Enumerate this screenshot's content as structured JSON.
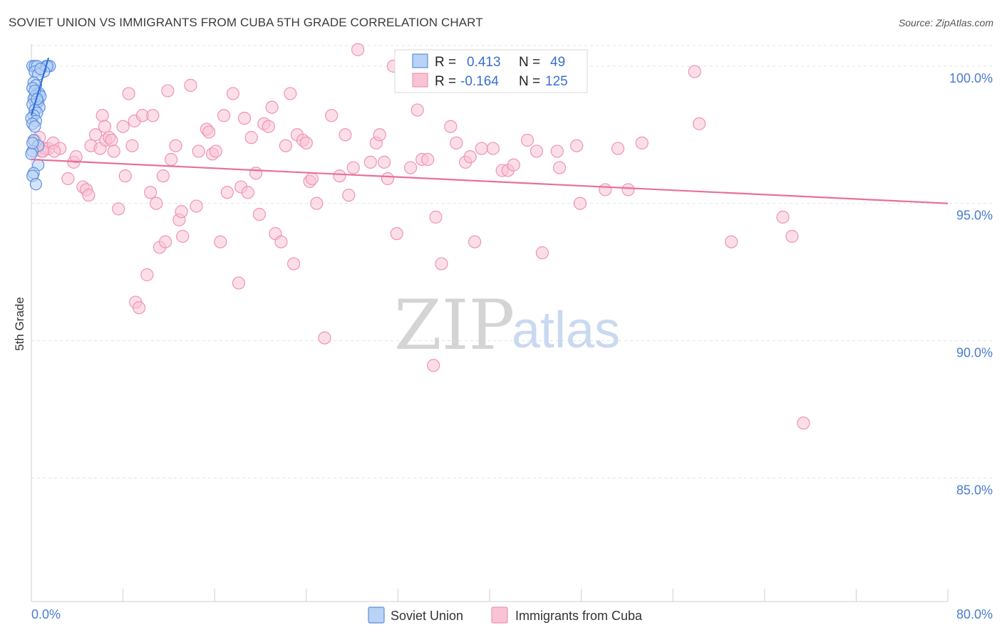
{
  "title": "SOVIET UNION VS IMMIGRANTS FROM CUBA 5TH GRADE CORRELATION CHART",
  "source": "Source: ZipAtlas.com",
  "watermark": {
    "zip": "ZIP",
    "atlas": "atlas"
  },
  "colors": {
    "soviet_fill": "#b9d2f5",
    "soviet_stroke": "#5b8fe0",
    "soviet_line": "#2f6fd6",
    "cuba_fill": "#f9c3d5",
    "cuba_stroke": "#ee94b4",
    "cuba_line": "#e8709a",
    "axis_text": "#4a7bd0",
    "grid": "#e3e3e3"
  },
  "stats": [
    {
      "r_label": "R =",
      "r": "0.413",
      "n_label": "N =",
      "n": "49"
    },
    {
      "r_label": "R =",
      "r": "-0.164",
      "n_label": "N =",
      "n": "125"
    }
  ],
  "chart_data": {
    "type": "scatter",
    "xlabel": "",
    "ylabel": "5th Grade",
    "xlim": [
      0,
      80
    ],
    "ylim": [
      80.5,
      100.8
    ],
    "x_tick_labels": [
      "0.0%",
      "80.0%"
    ],
    "y_ticks": [
      85,
      90,
      95,
      100
    ],
    "y_tick_labels": [
      "85.0%",
      "90.0%",
      "95.0%",
      "100.0%"
    ],
    "grid": true,
    "legend": "bottom-center",
    "series": [
      {
        "name": "Soviet Union",
        "r": 0.413,
        "n": 49,
        "trend": [
          [
            0.0,
            98.2
          ],
          [
            1.5,
            100.3
          ]
        ],
        "points": [
          [
            0.1,
            100
          ],
          [
            0.3,
            100
          ],
          [
            0.5,
            100
          ],
          [
            1.3,
            100
          ],
          [
            1.6,
            100
          ],
          [
            1.4,
            100
          ],
          [
            1.1,
            99.8
          ],
          [
            0.3,
            99.8
          ],
          [
            0.6,
            99.7
          ],
          [
            0.2,
            99.4
          ],
          [
            0.4,
            99.3
          ],
          [
            0.1,
            99.2
          ],
          [
            0.5,
            99.0
          ],
          [
            0.7,
            99.0
          ],
          [
            0.3,
            98.9
          ],
          [
            0.8,
            98.9
          ],
          [
            0.2,
            98.8
          ],
          [
            0.6,
            98.7
          ],
          [
            0.4,
            98.6
          ],
          [
            0.1,
            98.6
          ],
          [
            0.7,
            98.5
          ],
          [
            0.3,
            98.4
          ],
          [
            0.5,
            98.3
          ],
          [
            0.2,
            98.2
          ],
          [
            0.0,
            98.1
          ],
          [
            0.4,
            98.0
          ],
          [
            0.1,
            97.9
          ],
          [
            0.3,
            97.8
          ],
          [
            0.2,
            97.3
          ],
          [
            0.6,
            97.1
          ],
          [
            0.1,
            96.9
          ],
          [
            0.0,
            96.8
          ],
          [
            0.6,
            96.4
          ],
          [
            0.2,
            96.1
          ],
          [
            0.1,
            96.0
          ],
          [
            0.4,
            95.7
          ],
          [
            0.1,
            97.2
          ],
          [
            0.3,
            99.1
          ],
          [
            0.8,
            99.9
          ],
          [
            0.5,
            98.8
          ]
        ]
      },
      {
        "name": "Immigrants from Cuba",
        "r": -0.164,
        "n": 125,
        "trend": [
          [
            0.0,
            96.6
          ],
          [
            80.0,
            95.0
          ]
        ],
        "points": [
          [
            0.3,
            97.3
          ],
          [
            0.5,
            97.0
          ],
          [
            0.7,
            97.4
          ],
          [
            0.9,
            96.9
          ],
          [
            1.2,
            97.0
          ],
          [
            1.5,
            97.0
          ],
          [
            1.9,
            97.2
          ],
          [
            2.5,
            97.0
          ],
          [
            2.0,
            96.9
          ],
          [
            3.7,
            96.5
          ],
          [
            3.9,
            96.7
          ],
          [
            4.5,
            95.6
          ],
          [
            4.8,
            95.5
          ],
          [
            5.0,
            95.3
          ],
          [
            5.2,
            97.1
          ],
          [
            5.6,
            97.5
          ],
          [
            6.0,
            97.0
          ],
          [
            6.2,
            98.2
          ],
          [
            6.5,
            97.3
          ],
          [
            6.8,
            97.4
          ],
          [
            7.0,
            97.3
          ],
          [
            7.2,
            96.9
          ],
          [
            7.6,
            94.8
          ],
          [
            8.0,
            97.8
          ],
          [
            8.2,
            96.0
          ],
          [
            8.5,
            99.0
          ],
          [
            8.8,
            97.1
          ],
          [
            9.1,
            91.4
          ],
          [
            9.4,
            91.2
          ],
          [
            9.0,
            98.0
          ],
          [
            9.7,
            98.2
          ],
          [
            10.1,
            92.4
          ],
          [
            10.4,
            95.4
          ],
          [
            10.6,
            98.2
          ],
          [
            10.9,
            95.0
          ],
          [
            11.2,
            93.4
          ],
          [
            11.5,
            96.0
          ],
          [
            11.7,
            93.6
          ],
          [
            12.2,
            96.6
          ],
          [
            12.6,
            97.1
          ],
          [
            12.9,
            94.4
          ],
          [
            13.1,
            94.7
          ],
          [
            13.2,
            93.8
          ],
          [
            13.9,
            99.3
          ],
          [
            14.4,
            94.9
          ],
          [
            14.6,
            96.9
          ],
          [
            15.3,
            97.7
          ],
          [
            15.5,
            97.6
          ],
          [
            15.8,
            96.8
          ],
          [
            16.1,
            96.9
          ],
          [
            16.5,
            93.6
          ],
          [
            16.8,
            98.2
          ],
          [
            17.1,
            95.4
          ],
          [
            17.6,
            99.0
          ],
          [
            18.1,
            92.1
          ],
          [
            18.3,
            95.6
          ],
          [
            18.6,
            98.1
          ],
          [
            18.9,
            95.4
          ],
          [
            19.2,
            97.4
          ],
          [
            19.6,
            96.1
          ],
          [
            19.9,
            94.6
          ],
          [
            20.3,
            97.9
          ],
          [
            20.7,
            97.8
          ],
          [
            21.0,
            98.5
          ],
          [
            21.3,
            93.9
          ],
          [
            21.8,
            93.6
          ],
          [
            22.2,
            97.1
          ],
          [
            22.6,
            99.0
          ],
          [
            22.9,
            92.8
          ],
          [
            23.2,
            97.5
          ],
          [
            23.7,
            97.3
          ],
          [
            24.0,
            97.2
          ],
          [
            24.3,
            95.8
          ],
          [
            24.5,
            95.9
          ],
          [
            24.9,
            95.0
          ],
          [
            25.6,
            90.1
          ],
          [
            26.2,
            98.2
          ],
          [
            26.9,
            96.0
          ],
          [
            27.4,
            97.5
          ],
          [
            27.7,
            95.3
          ],
          [
            28.1,
            96.3
          ],
          [
            29.6,
            96.5
          ],
          [
            30.1,
            97.2
          ],
          [
            30.4,
            97.5
          ],
          [
            30.8,
            96.5
          ],
          [
            31.1,
            95.9
          ],
          [
            31.6,
            100
          ],
          [
            31.9,
            93.9
          ],
          [
            33.1,
            96.3
          ],
          [
            33.7,
            98.4
          ],
          [
            34.1,
            96.6
          ],
          [
            34.6,
            96.6
          ],
          [
            35.1,
            89.1
          ],
          [
            35.3,
            94.5
          ],
          [
            35.8,
            92.8
          ],
          [
            36.6,
            97.8
          ],
          [
            37.1,
            97.2
          ],
          [
            37.9,
            96.5
          ],
          [
            38.3,
            96.7
          ],
          [
            38.7,
            93.6
          ],
          [
            39.3,
            97.0
          ],
          [
            40.3,
            97.0
          ],
          [
            41.1,
            96.2
          ],
          [
            41.6,
            96.2
          ],
          [
            42.1,
            96.4
          ],
          [
            43.3,
            97.3
          ],
          [
            44.1,
            96.9
          ],
          [
            44.6,
            93.2
          ],
          [
            45.9,
            96.9
          ],
          [
            46.1,
            96.3
          ],
          [
            47.6,
            97.1
          ],
          [
            47.9,
            95.0
          ],
          [
            50.1,
            95.5
          ],
          [
            51.2,
            97.0
          ],
          [
            52.1,
            95.5
          ],
          [
            53.3,
            97.2
          ],
          [
            57.9,
            99.8
          ],
          [
            58.3,
            97.9
          ],
          [
            61.1,
            93.6
          ],
          [
            65.6,
            94.5
          ],
          [
            66.4,
            93.8
          ],
          [
            67.4,
            87.0
          ],
          [
            1.0,
            96.9
          ],
          [
            3.2,
            95.9
          ],
          [
            6.4,
            97.8
          ],
          [
            11.9,
            99.1
          ],
          [
            28.5,
            100.6
          ]
        ]
      }
    ]
  }
}
